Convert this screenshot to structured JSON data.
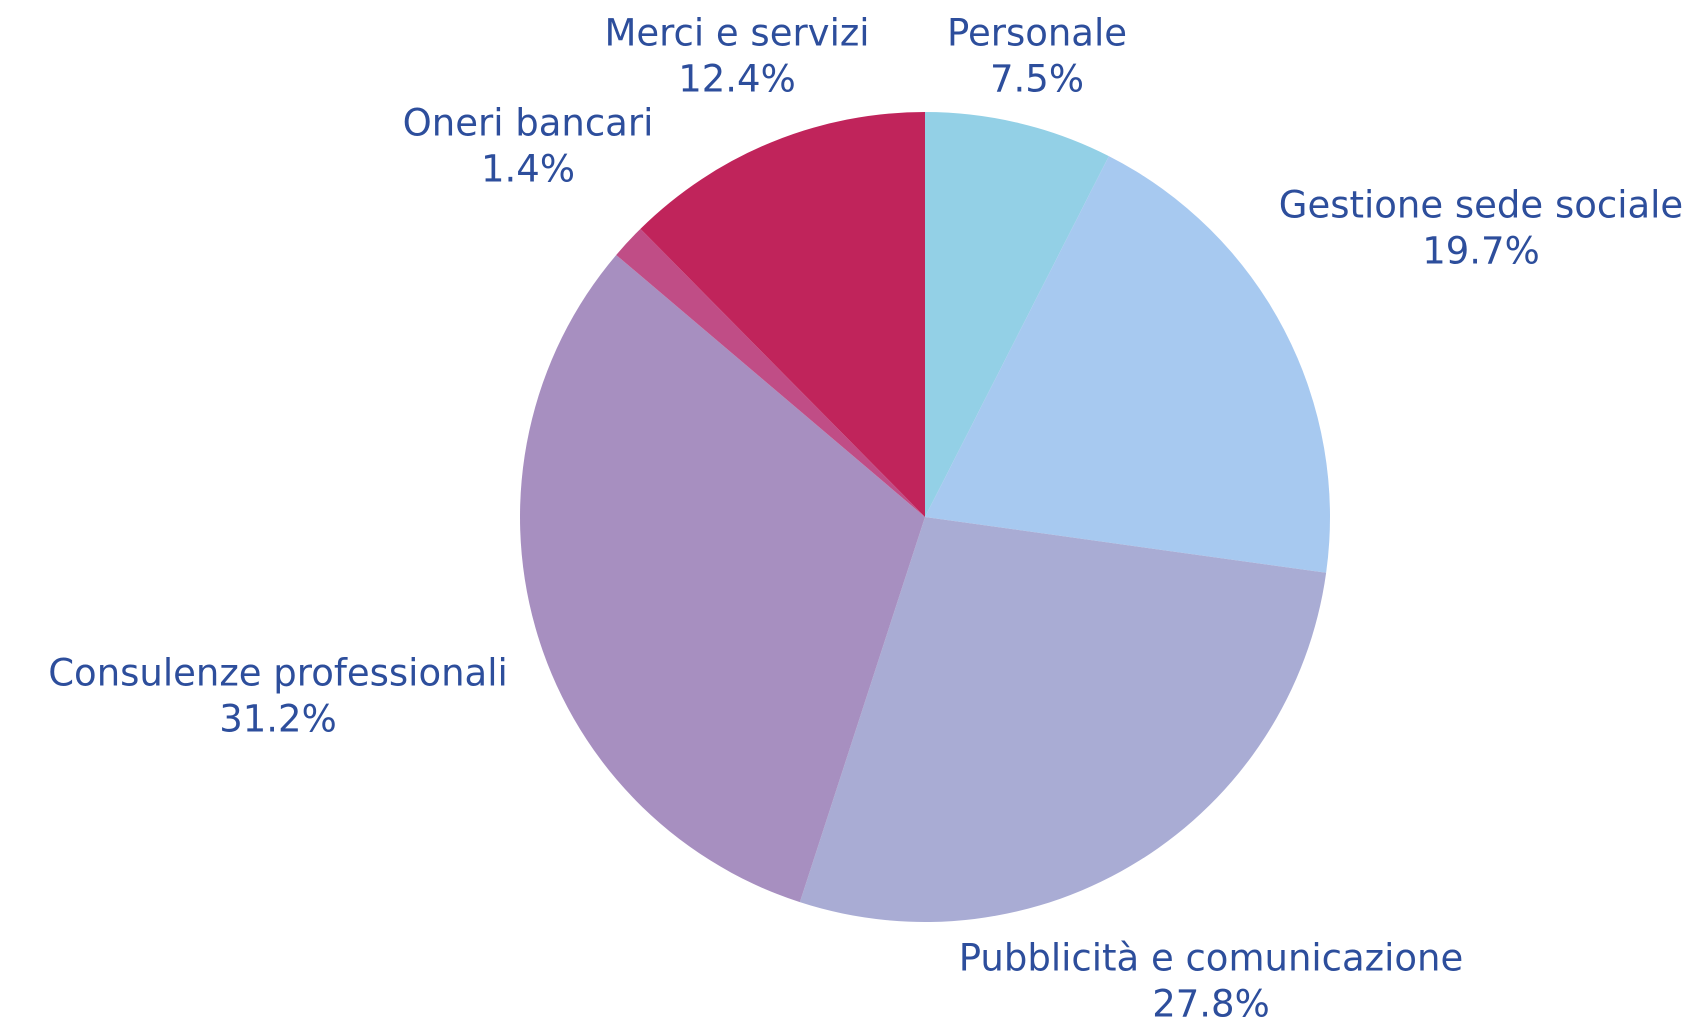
{
  "chart_data": {
    "type": "pie",
    "categories": [
      "Personale",
      "Gestione sede sociale",
      "Pubblicità e comunicazione",
      "Consulenze professionali",
      "Oneri bancari",
      "Merci e servizi"
    ],
    "values": [
      7.5,
      19.7,
      27.8,
      31.2,
      1.4,
      12.4
    ],
    "value_labels": [
      "7.5%",
      "19.7%",
      "27.8%",
      "31.2%",
      "1.4%",
      "12.4%"
    ],
    "colors": [
      "#93d0e6",
      "#a7c9f0",
      "#a9acd4",
      "#a78fc0",
      "#c04d86",
      "#c0245b"
    ]
  }
}
